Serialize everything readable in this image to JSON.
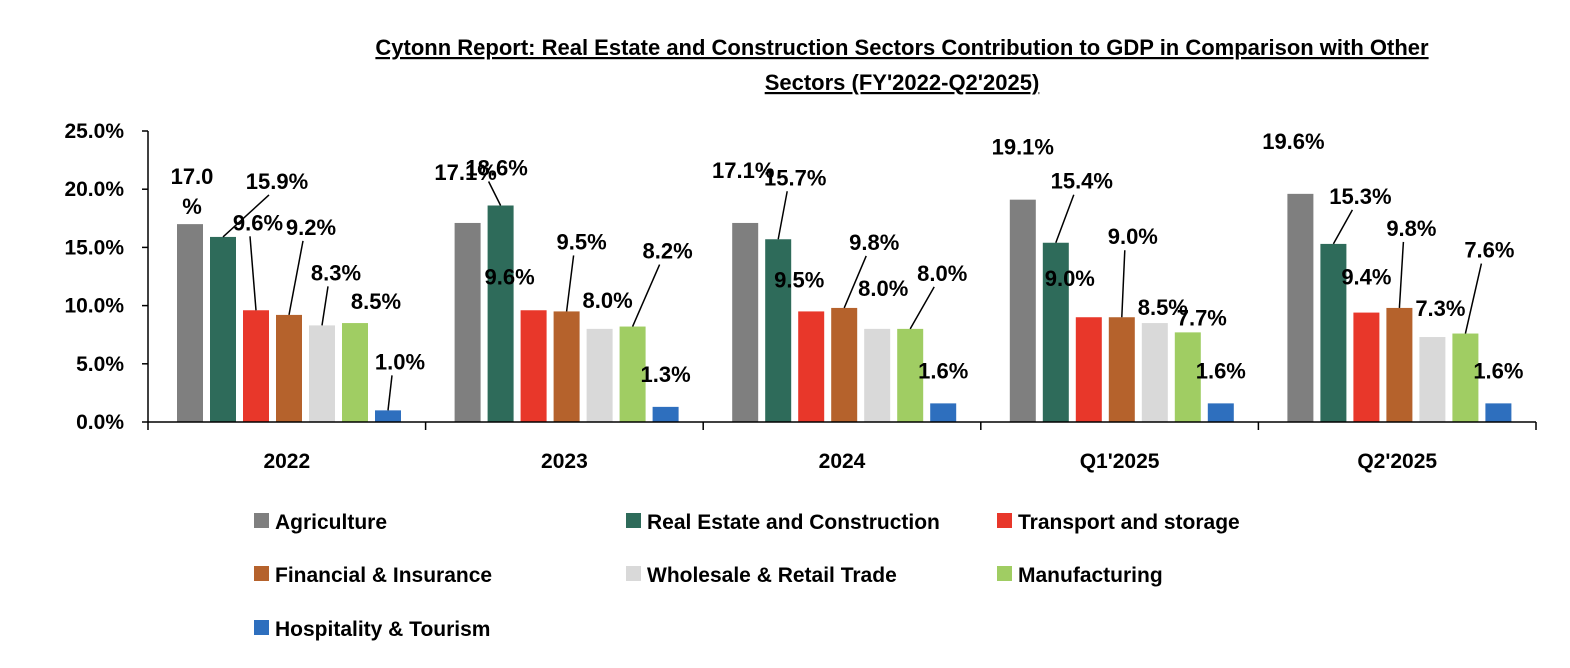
{
  "chart_data": {
    "type": "bar",
    "title": "Cytonn Report: Real Estate and Construction Sectors Contribution to GDP in Comparison with Other Sectors (FY'2022-Q2'2025)",
    "title_lines": [
      "Cytonn Report: Real Estate and Construction Sectors Contribution to GDP in Comparison with Other",
      "Sectors (FY'2022-Q2'2025)"
    ],
    "xlabel": "",
    "ylabel": "",
    "ylim": [
      0,
      25
    ],
    "yticks": [
      0,
      5,
      10,
      15,
      20,
      25
    ],
    "ytick_labels": [
      "0.0%",
      "5.0%",
      "10.0%",
      "15.0%",
      "20.0%",
      "25.0%"
    ],
    "grid": false,
    "legend_position": "bottom",
    "categories": [
      "2022",
      "2023",
      "2024",
      "Q1'2025",
      "Q2'2025"
    ],
    "series": [
      {
        "name": "Agriculture",
        "color": "#7f7f7f",
        "values": [
          17.0,
          17.1,
          17.1,
          19.1,
          19.6
        ],
        "labels": [
          "17.0%",
          "17.1%",
          "17.1%",
          "19.1%",
          "19.6%"
        ]
      },
      {
        "name": "Real Estate and Construction",
        "color": "#2e6b5a",
        "values": [
          15.9,
          18.6,
          15.7,
          15.4,
          15.3
        ],
        "labels": [
          "15.9%",
          "18.6%",
          "15.7%",
          "15.4%",
          "15.3%"
        ]
      },
      {
        "name": "Transport and storage",
        "color": "#e8372a",
        "values": [
          9.6,
          9.6,
          9.5,
          9.0,
          9.4
        ],
        "labels": [
          "9.6%",
          "9.6%",
          "9.5%",
          "9.0%",
          "9.4%"
        ]
      },
      {
        "name": "Financial & Insurance",
        "color": "#b5622c",
        "values": [
          9.2,
          9.5,
          9.8,
          9.0,
          9.8
        ],
        "labels": [
          "9.2%",
          "9.5%",
          "9.8%",
          "9.0%",
          "9.8%"
        ]
      },
      {
        "name": "Wholesale & Retail Trade",
        "color": "#d9d9d9",
        "values": [
          8.3,
          8.0,
          8.0,
          8.5,
          7.3
        ],
        "labels": [
          "8.3%",
          "8.0%",
          "8.0%",
          "8.5%",
          "7.3%"
        ]
      },
      {
        "name": "Manufacturing",
        "color": "#a0cd63",
        "values": [
          8.5,
          8.2,
          8.0,
          7.7,
          7.6
        ],
        "labels": [
          "8.5%",
          "8.2%",
          "8.0%",
          "7.7%",
          "7.6%"
        ]
      },
      {
        "name": "Hospitality & Tourism",
        "color": "#2e6fbe",
        "values": [
          1.0,
          1.3,
          1.6,
          1.6,
          1.6
        ],
        "labels": [
          "1.0%",
          "1.3%",
          "1.6%",
          "1.6%",
          "1.6%"
        ]
      }
    ]
  }
}
